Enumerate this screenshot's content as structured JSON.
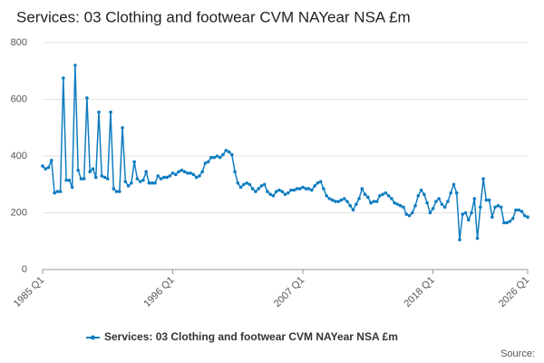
{
  "chart_data": {
    "type": "line",
    "title": "Services: 03 Clothing and footwear CVM NAYear NSA £m",
    "source": "Source:",
    "categories": [
      "1985 Q1",
      null,
      null,
      null,
      null,
      null,
      null,
      null,
      null,
      null,
      null,
      null,
      null,
      null,
      null,
      null,
      null,
      null,
      null,
      null,
      null,
      null,
      null,
      null,
      null,
      null,
      null,
      null,
      null,
      null,
      null,
      null,
      null,
      null,
      null,
      null,
      null,
      null,
      null,
      null,
      null,
      null,
      null,
      null,
      "1996 Q1",
      null,
      null,
      null,
      null,
      null,
      null,
      null,
      null,
      null,
      null,
      null,
      null,
      null,
      null,
      null,
      null,
      null,
      null,
      null,
      null,
      null,
      null,
      null,
      null,
      null,
      null,
      null,
      null,
      null,
      null,
      null,
      null,
      null,
      null,
      null,
      null,
      null,
      null,
      null,
      null,
      null,
      null,
      null,
      "2007 Q1",
      null,
      null,
      null,
      null,
      null,
      null,
      null,
      null,
      null,
      null,
      null,
      null,
      null,
      null,
      null,
      null,
      null,
      null,
      null,
      null,
      null,
      null,
      null,
      null,
      null,
      null,
      null,
      null,
      null,
      null,
      null,
      null,
      null,
      null,
      null,
      null,
      null,
      null,
      null,
      null,
      null,
      null,
      null,
      "2018 Q1",
      null,
      null,
      null,
      null,
      null,
      null,
      null,
      null,
      null,
      null,
      null,
      null,
      null,
      null,
      null,
      null,
      null,
      null,
      null,
      null,
      null,
      null,
      null,
      null,
      null,
      null,
      null,
      null,
      null,
      null,
      null,
      "2026 Q1"
    ],
    "series": [
      {
        "name": "Services: 03 Clothing and footwear CVM NAYear NSA £m",
        "color": "#0f7cc0",
        "values": [
          365,
          355,
          360,
          385,
          270,
          275,
          275,
          675,
          315,
          315,
          290,
          720,
          350,
          320,
          320,
          605,
          345,
          355,
          325,
          555,
          330,
          325,
          320,
          555,
          285,
          275,
          275,
          500,
          310,
          295,
          305,
          380,
          320,
          310,
          315,
          345,
          305,
          305,
          305,
          330,
          320,
          325,
          325,
          330,
          340,
          335,
          345,
          350,
          345,
          340,
          340,
          335,
          325,
          330,
          345,
          375,
          380,
          395,
          395,
          400,
          395,
          405,
          420,
          415,
          405,
          345,
          305,
          290,
          300,
          305,
          300,
          285,
          275,
          285,
          295,
          300,
          275,
          265,
          260,
          275,
          280,
          275,
          265,
          270,
          280,
          280,
          285,
          285,
          290,
          285,
          285,
          280,
          295,
          305,
          310,
          285,
          260,
          250,
          245,
          240,
          240,
          245,
          250,
          240,
          225,
          210,
          230,
          250,
          285,
          265,
          255,
          235,
          240,
          240,
          260,
          265,
          270,
          260,
          250,
          235,
          230,
          225,
          220,
          195,
          190,
          200,
          225,
          260,
          280,
          265,
          235,
          200,
          215,
          240,
          250,
          230,
          220,
          240,
          270,
          300,
          270,
          105,
          195,
          200,
          175,
          200,
          250,
          110,
          220,
          320,
          245,
          245,
          185,
          220,
          225,
          220,
          165,
          165,
          170,
          180,
          210,
          210,
          205,
          190,
          185
        ]
      }
    ],
    "ylim": [
      0,
      800
    ],
    "yticks": [
      0,
      200,
      400,
      600,
      800
    ],
    "grid": true
  }
}
